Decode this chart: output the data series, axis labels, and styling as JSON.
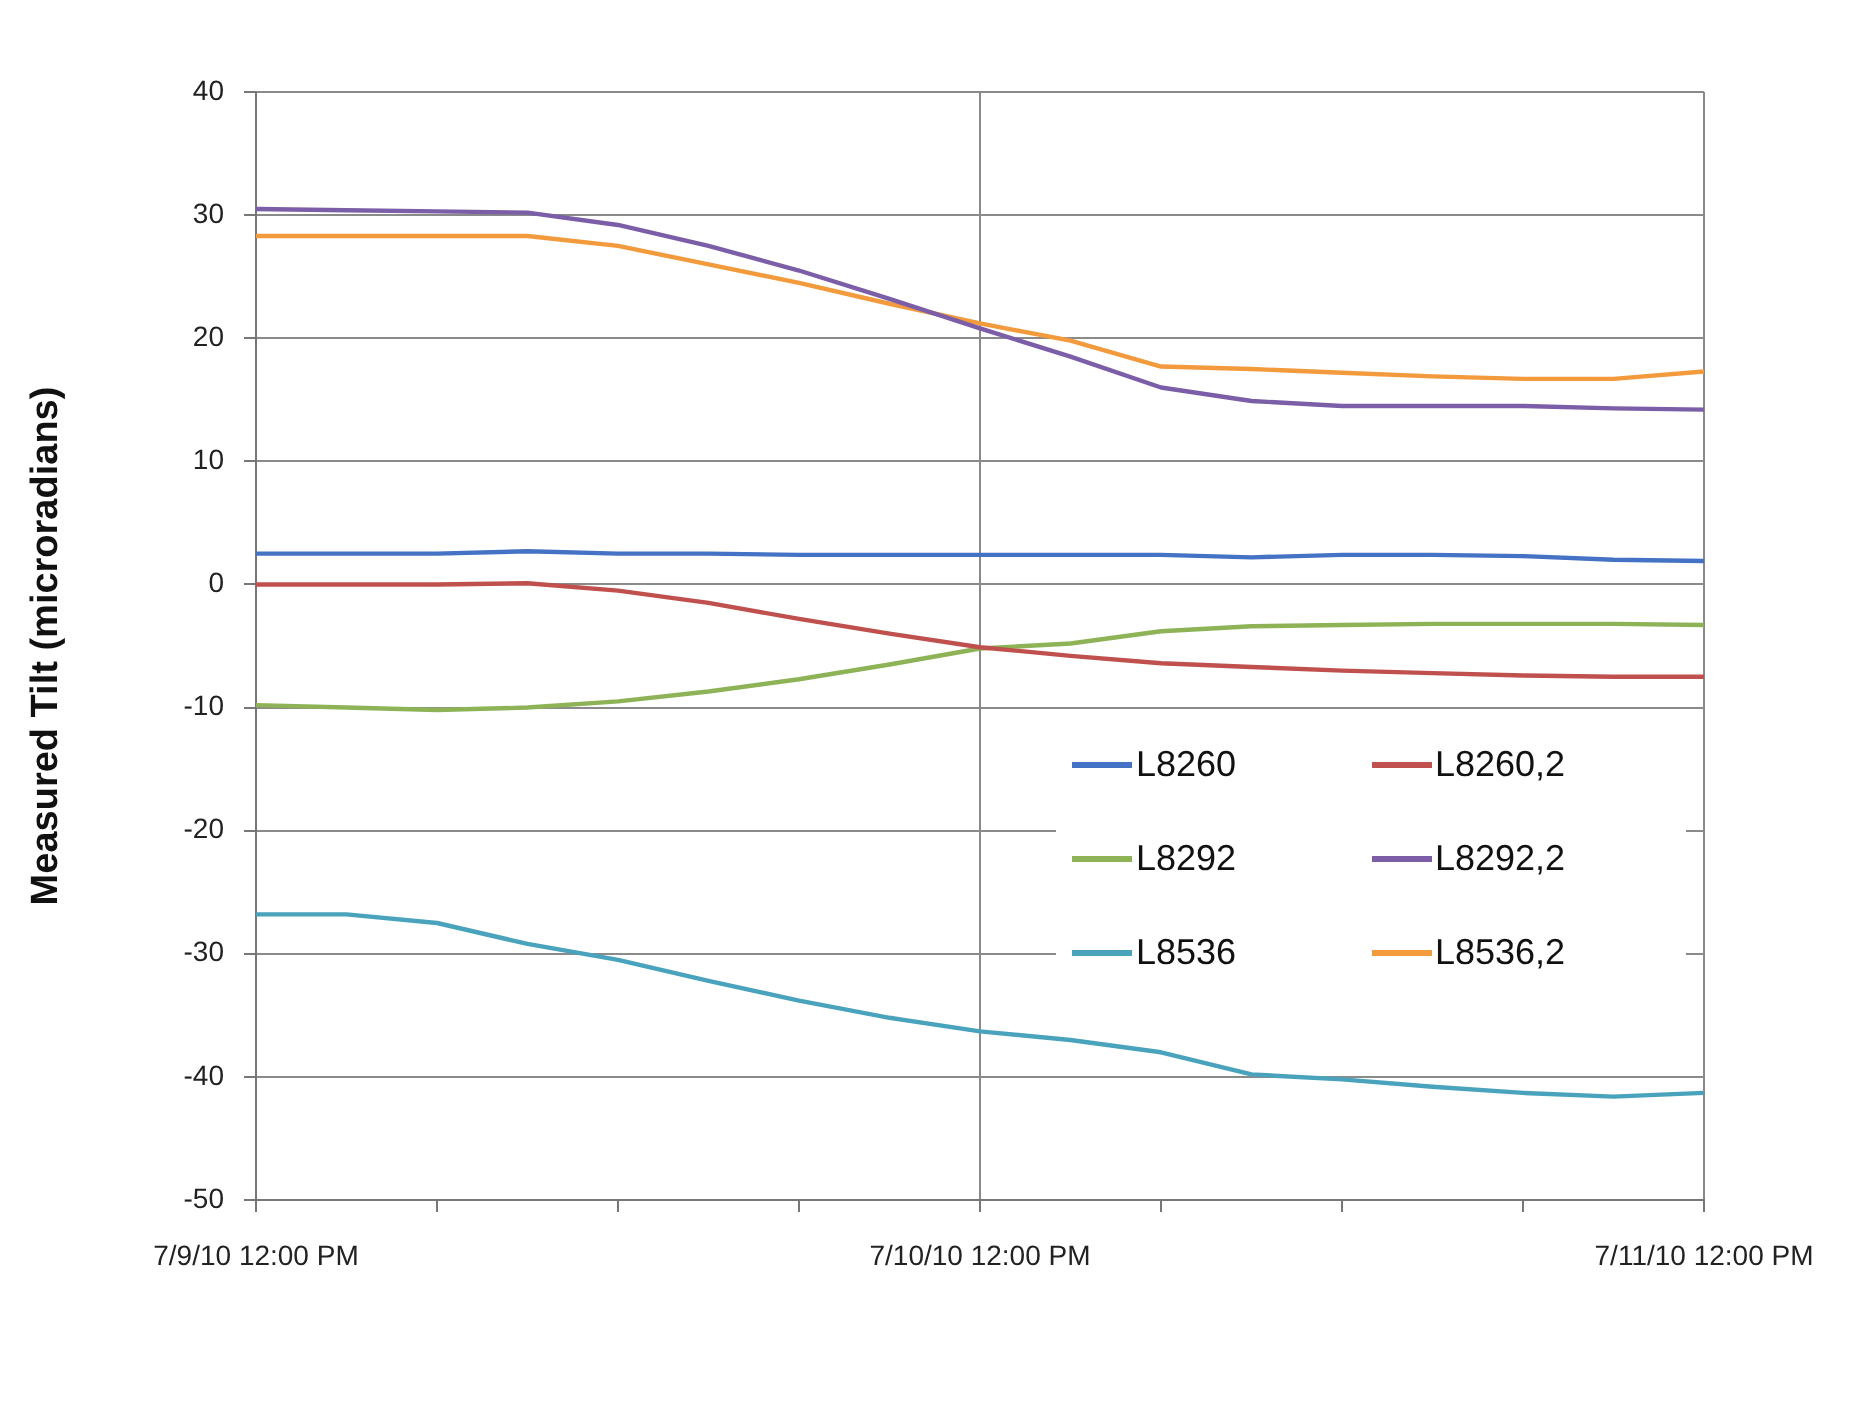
{
  "chart_data": {
    "type": "line",
    "ylabel": "Measured Tilt (microradians)",
    "x": [
      "--07-09T12:00",
      "--07-09T15:00",
      "--07-09T18:00",
      "--07-09T21:00",
      "--07-10T00:00",
      "--07-10T03:00",
      "--07-10T06:00",
      "--07-10T09:00",
      "--07-10T12:00",
      "--07-10T15:00",
      "--07-10T18:00",
      "--07-10T21:00",
      "--07-11T00:00",
      "--07-11T03:00",
      "--07-11T06:00",
      "--07-11T09:00",
      "--07-11T12:00"
    ],
    "series": [
      {
        "name": "L8260",
        "color": "#4472c4",
        "values": [
          2.5,
          2.5,
          2.5,
          2.7,
          2.5,
          2.5,
          2.4,
          2.4,
          2.4,
          2.4,
          2.4,
          2.2,
          2.4,
          2.4,
          2.3,
          2.0,
          1.9
        ]
      },
      {
        "name": "L8260,2",
        "color": "#c0504d",
        "values": [
          0,
          0,
          0,
          0.1,
          -0.5,
          -1.5,
          -2.8,
          -4,
          -5.1,
          -5.8,
          -6.4,
          -6.7,
          -7,
          -7.2,
          -7.4,
          -7.5,
          -7.5
        ]
      },
      {
        "name": "L8292",
        "color": "#8db356",
        "values": [
          -9.8,
          -10,
          -10.2,
          -10,
          -9.5,
          -8.7,
          -7.7,
          -6.5,
          -5.2,
          -4.8,
          -3.8,
          -3.4,
          -3.3,
          -3.2,
          -3.2,
          -3.2,
          -3.3
        ]
      },
      {
        "name": "L8292,2",
        "color": "#7b5ea7",
        "values": [
          30.5,
          30.4,
          30.3,
          30.2,
          29.2,
          27.5,
          25.5,
          23.2,
          20.8,
          18.5,
          16,
          14.9,
          14.5,
          14.5,
          14.5,
          14.3,
          14.2
        ]
      },
      {
        "name": "L8536",
        "color": "#4aa3bd",
        "values": [
          -26.8,
          -26.8,
          -27.5,
          -29.2,
          -30.5,
          -32.2,
          -33.8,
          -35.2,
          -36.3,
          -37,
          -38,
          -39.8,
          -40.2,
          -40.8,
          -41.3,
          -41.6,
          -41.3
        ]
      },
      {
        "name": "L8536,2",
        "color": "#f39a3d",
        "values": [
          28.3,
          28.3,
          28.3,
          28.3,
          27.5,
          26,
          24.5,
          22.8,
          21.2,
          19.8,
          17.7,
          17.5,
          17.2,
          16.9,
          16.7,
          16.7,
          17.3
        ]
      }
    ],
    "xlim": [
      "--07-09T12:00",
      "--07-11T12:00"
    ],
    "xticks": [
      {
        "value": "--07-09T12:00",
        "label": "7/9/10 12:00 PM"
      },
      {
        "value": "--07-09T18:00",
        "label": null
      },
      {
        "value": "--07-10T00:00",
        "label": null
      },
      {
        "value": "--07-10T06:00",
        "label": null
      },
      {
        "value": "--07-10T12:00",
        "label": "7/10/10 12:00 PM"
      },
      {
        "value": "--07-10T18:00",
        "label": null
      },
      {
        "value": "--07-11T00:00",
        "label": null
      },
      {
        "value": "--07-11T06:00",
        "label": null
      },
      {
        "value": "--07-11T12:00",
        "label": "7/11/10 12:00 PM"
      }
    ],
    "ylim": [
      -50,
      40
    ],
    "yticks": [
      -50,
      -40,
      -30,
      -20,
      -10,
      0,
      10,
      20,
      30,
      40
    ],
    "grid": true,
    "legend": "right",
    "marker": "none",
    "line_style": "solid"
  }
}
